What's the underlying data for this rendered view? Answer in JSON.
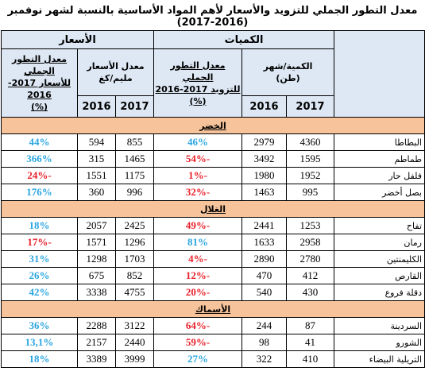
{
  "title": "معدل التطور الجملي للتزويد والأسعار لأهم المواد الأساسية بالنسبة لشهر نوفمبر (2016-2017)",
  "header": {
    "quantities_label": "الكميات",
    "prices_label": "الأسعار",
    "qty_per_month": "الكمية/شهر",
    "qty_unit": "(طن)",
    "supply_growth_line1": "معدل التطور الجملي",
    "supply_growth_line2": "للتزويد 2017-2016",
    "supply_growth_line3": "(%)",
    "avg_price_line1": "معدل الأسعار",
    "avg_price_line2": "مليم/كغ",
    "price_growth_line1": "معدل التطور الجملي",
    "price_growth_line2": "للأسعار 2017-2016",
    "price_growth_line3": "(%)",
    "year_2017": "2017",
    "year_2016": "2016"
  },
  "sections": [
    {
      "label": "الخضر",
      "rows": [
        {
          "name": "البطاطا",
          "q2017": "4360",
          "q2016": "2979",
          "supply": "46%",
          "supply_sign": "pos",
          "p2017": "855",
          "p2016": "594",
          "price": "44%",
          "price_sign": "pos"
        },
        {
          "name": "طماطم",
          "q2017": "1595",
          "q2016": "3492",
          "supply": "-54%",
          "supply_sign": "neg",
          "p2017": "1465",
          "p2016": "315",
          "price": "366%",
          "price_sign": "pos"
        },
        {
          "name": "فلفل حار",
          "q2017": "1952",
          "q2016": "1980",
          "supply": "-1%",
          "supply_sign": "neg",
          "p2017": "1175",
          "p2016": "1551",
          "price": "-24%",
          "price_sign": "neg"
        },
        {
          "name": "بصل أخضر",
          "q2017": "995",
          "q2016": "1463",
          "supply": "-32%",
          "supply_sign": "neg",
          "p2017": "996",
          "p2016": "360",
          "price": "176%",
          "price_sign": "pos"
        }
      ]
    },
    {
      "label": "الغلال",
      "rows": [
        {
          "name": "تفاح",
          "q2017": "1253",
          "q2016": "2441",
          "supply": "-49%",
          "supply_sign": "neg",
          "p2017": "2425",
          "p2016": "2057",
          "price": "18%",
          "price_sign": "pos"
        },
        {
          "name": "رمان",
          "q2017": "2958",
          "q2016": "1633",
          "supply": "81%",
          "supply_sign": "pos",
          "p2017": "1296",
          "p2016": "1571",
          "price": "-17%",
          "price_sign": "neg"
        },
        {
          "name": "الكليمنتين",
          "q2017": "2780",
          "q2016": "2890",
          "supply": "-4%",
          "supply_sign": "neg",
          "p2017": "1703",
          "p2016": "1298",
          "price": "31%",
          "price_sign": "pos"
        },
        {
          "name": "القارص",
          "q2017": "412",
          "q2016": "470",
          "supply": "-12%",
          "supply_sign": "neg",
          "p2017": "852",
          "p2016": "675",
          "price": "26%",
          "price_sign": "pos"
        },
        {
          "name": "دقلة فروع",
          "q2017": "430",
          "q2016": "540",
          "supply": "-20%",
          "supply_sign": "neg",
          "p2017": "4755",
          "p2016": "3338",
          "price": "42%",
          "price_sign": "pos"
        }
      ]
    },
    {
      "label": "الأسماك",
      "rows": [
        {
          "name": "السردينة",
          "q2017": "87",
          "q2016": "244",
          "supply": "-64%",
          "supply_sign": "neg",
          "p2017": "3122",
          "p2016": "2288",
          "price": "36%",
          "price_sign": "pos"
        },
        {
          "name": "الشورو",
          "q2017": "41",
          "q2016": "98",
          "supply": "-59%",
          "supply_sign": "neg",
          "p2017": "2440",
          "p2016": "2157",
          "price": "13,1%",
          "price_sign": "pos"
        },
        {
          "name": "التريلية البيضاء",
          "q2017": "410",
          "q2016": "322",
          "supply": "27%",
          "supply_sign": "pos",
          "p2017": "3999",
          "p2016": "3389",
          "price": "18%",
          "price_sign": "pos"
        }
      ]
    }
  ]
}
